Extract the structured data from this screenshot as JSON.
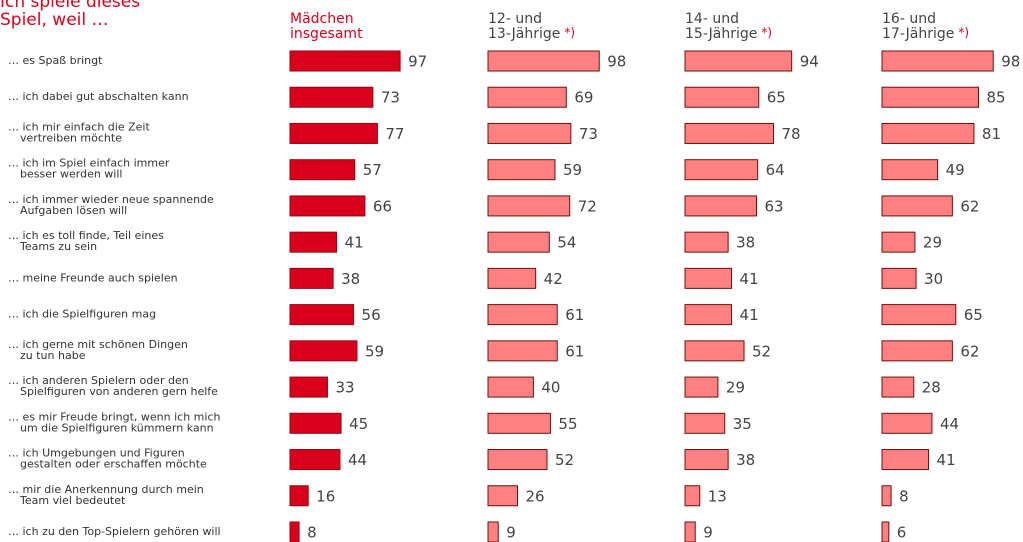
{
  "chart_data": {
    "type": "bar",
    "orientation": "horizontal",
    "title": "Ich spiele dieses\nSpiel, weil …",
    "footnote_mark": "*)",
    "categories": [
      "… es Spaß bringt",
      "… ich dabei gut abschalten kann",
      "… ich mir einfach die Zeit\nvertreiben möchte",
      "… ich im Spiel einfach immer\nbesser werden will",
      "… ich immer wieder neue spannende\nAufgaben lösen will",
      "… ich es toll finde, Teil eines\nTeams zu sein",
      "… meine Freunde auch spielen",
      "… ich die Spielfiguren mag",
      "… ich gerne mit schönen Dingen\nzu tun habe",
      "… ich anderen Spielern oder den\nSpielfiguren von anderen gern helfe",
      "… es mir Freude bringt, wenn ich mich\num die Spielfiguren kümmern kann",
      "… ich Umgebungen und Figuren\ngestalten oder erschaffen möchte",
      "… mir die Anerkennung durch mein\nTeam viel bedeutet",
      "… ich zu den Top-Spielern gehören will"
    ],
    "series": [
      {
        "name": "Mädchen\ninsgesamt",
        "color": "#d9001b",
        "border": "#9a0012",
        "header_color": "#d9001b",
        "footnote": false,
        "values": [
          97,
          73,
          77,
          57,
          66,
          41,
          38,
          56,
          59,
          33,
          45,
          44,
          16,
          8
        ]
      },
      {
        "name": "12- und\n13-Jährige",
        "color": "#ff8080",
        "border": "#6b1010",
        "header_color": "#444444",
        "footnote": true,
        "values": [
          98,
          69,
          73,
          59,
          72,
          54,
          42,
          61,
          61,
          40,
          55,
          52,
          26,
          9
        ]
      },
      {
        "name": "14- und\n15-Jährige",
        "color": "#ff8080",
        "border": "#6b1010",
        "header_color": "#444444",
        "footnote": true,
        "values": [
          94,
          65,
          78,
          64,
          63,
          38,
          41,
          41,
          52,
          29,
          35,
          38,
          13,
          9
        ]
      },
      {
        "name": "16- und\n17-Jährige",
        "color": "#ff8080",
        "border": "#6b1010",
        "header_color": "#444444",
        "footnote": true,
        "values": [
          98,
          85,
          81,
          49,
          62,
          29,
          30,
          65,
          62,
          28,
          44,
          41,
          8,
          6
        ]
      }
    ]
  }
}
